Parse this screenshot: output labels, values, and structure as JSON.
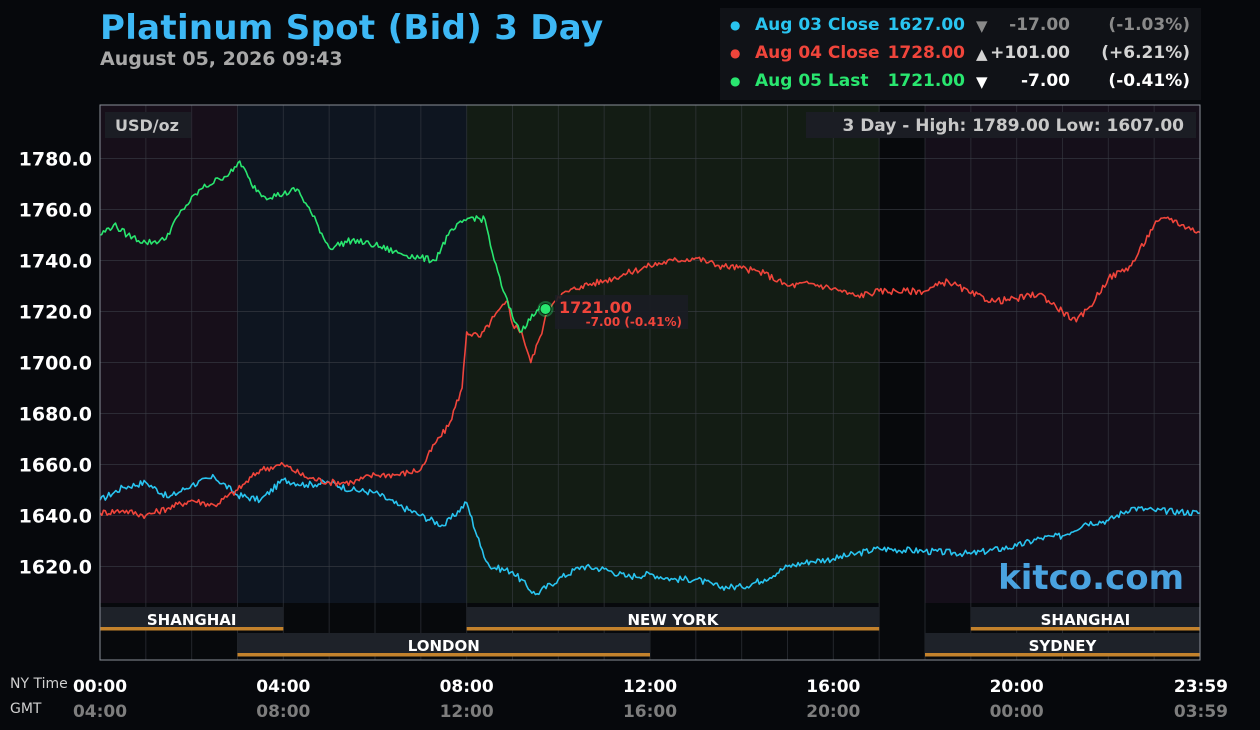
{
  "header": {
    "title": "Platinum Spot (Bid) 3 Day",
    "timestamp": "August 05, 2026 09:43"
  },
  "legend": [
    {
      "label": "Aug 03 Close",
      "value": "1627.00",
      "arrow": "▼",
      "change": "-17.00",
      "percent": "(-1.03%)",
      "color": "#29c4f0",
      "change_color": "#8a8a8a"
    },
    {
      "label": "Aug 04 Close",
      "value": "1728.00",
      "arrow": "▲",
      "change": "+101.00",
      "percent": "(+6.21%)",
      "color": "#f0453b",
      "change_color": "#d4d4d4"
    },
    {
      "label": "Aug 05 Last",
      "value": "1721.00",
      "arrow": "▼",
      "change": "-7.00",
      "percent": "(-0.41%)",
      "color": "#29e66f",
      "change_color": "#ffffff"
    }
  ],
  "plot": {
    "unit_label": "USD/oz",
    "range_label": "3 Day - High: 1789.00  Low: 1607.00",
    "watermark": "kitco.com",
    "current_value": "1721.00",
    "current_change": "-7.00 (-0.41%)"
  },
  "time_labels": {
    "ny_title": "NY Time",
    "gmt_title": "GMT",
    "ny": [
      "00:00",
      "04:00",
      "08:00",
      "12:00",
      "16:00",
      "20:00",
      "23:59"
    ],
    "gmt": [
      "04:00",
      "08:00",
      "12:00",
      "16:00",
      "20:00",
      "00:00",
      "03:59"
    ]
  },
  "sessions": [
    {
      "name": "SHANGHAI",
      "start": 0,
      "end": 4,
      "row": 0
    },
    {
      "name": "NEW YORK",
      "start": 8,
      "end": 17,
      "row": 0
    },
    {
      "name": "SHANGHAI",
      "start": 19,
      "end": 24,
      "row": 0
    },
    {
      "name": "LONDON",
      "start": 3,
      "end": 12,
      "row": 1
    },
    {
      "name": "SYDNEY",
      "start": 18,
      "end": 24,
      "row": 1
    }
  ],
  "chart_data": {
    "type": "line",
    "x_unit": "NY time (hours)",
    "xlim": [
      0,
      24
    ],
    "ylim": [
      1600,
      1800
    ],
    "yticks": [
      1620.0,
      1640.0,
      1660.0,
      1680.0,
      1700.0,
      1720.0,
      1740.0,
      1760.0,
      1780.0
    ],
    "ytick_labels": [
      "1620.0",
      "1640.0",
      "1660.0",
      "1680.0",
      "1700.0",
      "1720.0",
      "1740.0",
      "1760.0",
      "1780.0"
    ],
    "grid": true,
    "high": 1789.0,
    "low": 1607.0,
    "series": [
      {
        "name": "Aug 03 Close",
        "color": "#29c4f0",
        "x": [
          0,
          0.5,
          1.0,
          1.5,
          2.0,
          2.5,
          3.0,
          3.5,
          4.0,
          4.5,
          5.0,
          5.5,
          6.0,
          6.5,
          7.0,
          7.5,
          8.0,
          8.3,
          8.5,
          9.0,
          9.5,
          10.0,
          10.5,
          11.0,
          11.5,
          12.0,
          12.5,
          13.0,
          13.5,
          14.0,
          14.5,
          15.0,
          15.5,
          16.0,
          16.5,
          17.0,
          18.0,
          19.0,
          20.0,
          20.5,
          21.0,
          21.5,
          22.0,
          22.5,
          23.0,
          24.0
        ],
        "y": [
          1646,
          1651,
          1653,
          1647,
          1652,
          1655,
          1648,
          1646,
          1654,
          1652,
          1653,
          1650,
          1649,
          1644,
          1640,
          1636,
          1645,
          1628,
          1620,
          1618,
          1609,
          1615,
          1620,
          1619,
          1616,
          1617,
          1615,
          1615,
          1612,
          1612,
          1615,
          1620,
          1622,
          1623,
          1625,
          1627,
          1626,
          1625,
          1628,
          1631,
          1632,
          1637,
          1638,
          1643,
          1642,
          1641
        ]
      },
      {
        "name": "Aug 04 Close",
        "color": "#f0453b",
        "x": [
          0,
          0.5,
          1.0,
          1.5,
          2.0,
          2.5,
          3.0,
          3.5,
          4.0,
          4.5,
          5.0,
          5.5,
          6.0,
          6.5,
          7.0,
          7.3,
          7.6,
          7.9,
          8.0,
          8.3,
          8.6,
          8.9,
          9.0,
          9.2,
          9.4,
          9.6,
          9.8,
          10.0,
          10.5,
          11.0,
          11.5,
          12.0,
          12.5,
          13.0,
          13.5,
          14.0,
          14.5,
          15.0,
          15.5,
          16.0,
          16.5,
          17.0,
          18.0,
          18.5,
          19.0,
          19.5,
          20.0,
          20.5,
          21.0,
          21.3,
          21.6,
          22.0,
          22.5,
          23.0,
          23.3,
          23.6,
          24.0
        ],
        "y": [
          1641,
          1642,
          1640,
          1643,
          1646,
          1644,
          1650,
          1658,
          1660,
          1655,
          1653,
          1653,
          1656,
          1656,
          1658,
          1668,
          1675,
          1690,
          1712,
          1710,
          1718,
          1724,
          1715,
          1712,
          1700,
          1710,
          1722,
          1726,
          1730,
          1732,
          1735,
          1738,
          1740,
          1741,
          1738,
          1737,
          1735,
          1730,
          1731,
          1729,
          1726,
          1728,
          1728,
          1732,
          1727,
          1724,
          1725,
          1727,
          1720,
          1716,
          1722,
          1733,
          1738,
          1754,
          1757,
          1754,
          1751
        ]
      },
      {
        "name": "Aug 05 Last",
        "color": "#29e66f",
        "x": [
          0,
          0.3,
          0.6,
          1.0,
          1.4,
          1.8,
          2.2,
          2.6,
          2.9,
          3.05,
          3.3,
          3.6,
          4.0,
          4.3,
          4.6,
          5.0,
          5.5,
          6.0,
          6.5,
          7.0,
          7.3,
          7.6,
          7.9,
          8.1,
          8.4,
          8.6,
          8.8,
          9.0,
          9.2,
          9.35,
          9.5,
          9.6,
          9.72
        ],
        "y": [
          1750,
          1754,
          1750,
          1747,
          1748,
          1760,
          1768,
          1772,
          1775,
          1779,
          1770,
          1765,
          1766,
          1768,
          1759,
          1745,
          1748,
          1746,
          1743,
          1741,
          1740,
          1750,
          1755,
          1757,
          1756,
          1740,
          1728,
          1718,
          1712,
          1717,
          1719,
          1722,
          1721
        ]
      }
    ]
  }
}
